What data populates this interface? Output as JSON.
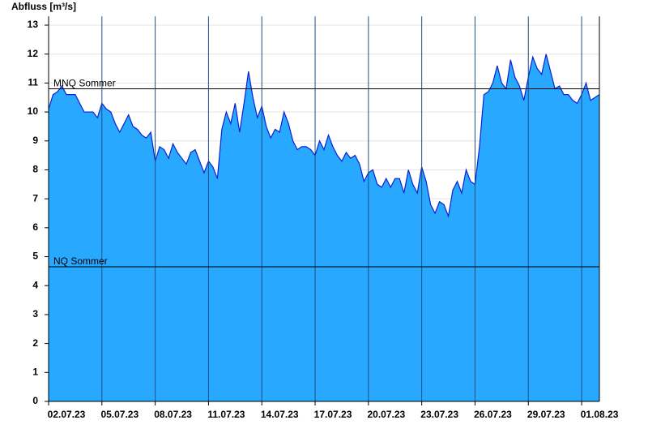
{
  "chart_data": {
    "type": "area",
    "title": "Abfluss [m³/s]",
    "categories": [
      "02.07.23",
      null,
      null,
      null,
      null,
      null,
      null,
      null,
      null,
      null,
      null,
      null,
      "05.07.23",
      null,
      null,
      null,
      null,
      null,
      null,
      null,
      null,
      null,
      null,
      null,
      "08.07.23",
      null,
      null,
      null,
      null,
      null,
      null,
      null,
      null,
      null,
      null,
      null,
      "11.07.23",
      null,
      null,
      null,
      null,
      null,
      null,
      null,
      null,
      null,
      null,
      null,
      "14.07.23",
      null,
      null,
      null,
      null,
      null,
      null,
      null,
      null,
      null,
      null,
      null,
      "17.07.23",
      null,
      null,
      null,
      null,
      null,
      null,
      null,
      null,
      null,
      null,
      null,
      "20.07.23",
      null,
      null,
      null,
      null,
      null,
      null,
      null,
      null,
      null,
      null,
      null,
      "23.07.23",
      null,
      null,
      null,
      null,
      null,
      null,
      null,
      null,
      null,
      null,
      null,
      "26.07.23",
      null,
      null,
      null,
      null,
      null,
      null,
      null,
      null,
      null,
      null,
      null,
      "29.07.23",
      null,
      null,
      null,
      null,
      null,
      null,
      null,
      null,
      null,
      null,
      null,
      "01.08.23",
      null,
      null,
      null,
      null
    ],
    "values": [
      10.1,
      10.6,
      10.7,
      10.9,
      10.6,
      10.6,
      10.6,
      10.3,
      10.0,
      10.0,
      10.0,
      9.8,
      10.3,
      10.1,
      10.0,
      9.6,
      9.3,
      9.6,
      9.9,
      9.5,
      9.4,
      9.2,
      9.1,
      9.3,
      8.3,
      8.8,
      8.7,
      8.4,
      8.9,
      8.6,
      8.4,
      8.2,
      8.6,
      8.7,
      8.3,
      7.9,
      8.3,
      8.1,
      7.7,
      9.4,
      10.0,
      9.6,
      10.3,
      9.3,
      10.3,
      11.4,
      10.5,
      9.8,
      10.2,
      9.5,
      9.1,
      9.4,
      9.3,
      10.0,
      9.6,
      9.0,
      8.7,
      8.8,
      8.8,
      8.7,
      8.5,
      9.0,
      8.7,
      9.2,
      8.8,
      8.5,
      8.3,
      8.6,
      8.4,
      8.5,
      8.2,
      7.6,
      7.9,
      8.0,
      7.5,
      7.4,
      7.7,
      7.4,
      7.7,
      7.7,
      7.2,
      8.0,
      7.5,
      7.2,
      8.1,
      7.6,
      6.8,
      6.5,
      6.9,
      6.8,
      6.4,
      7.3,
      7.6,
      7.2,
      8.0,
      7.6,
      7.5,
      8.8,
      10.6,
      10.7,
      11.0,
      11.6,
      11.0,
      10.8,
      11.8,
      11.2,
      10.9,
      10.4,
      11.2,
      11.9,
      11.5,
      11.3,
      12.0,
      11.4,
      10.8,
      10.9,
      10.6,
      10.6,
      10.4,
      10.3,
      10.6,
      11.0,
      10.4,
      10.5,
      10.6
    ],
    "color": "#29a8ff",
    "line_color": "#0a1fd6",
    "ylim": [
      0,
      13.3
    ],
    "yticks": [
      0,
      1,
      2,
      3,
      4,
      5,
      6,
      7,
      8,
      9,
      10,
      11,
      12,
      13
    ],
    "grid": true,
    "reference_lines": [
      {
        "label": "MNQ Sommer",
        "value": 10.8
      },
      {
        "label": "NQ Sommer",
        "value": 4.65
      }
    ]
  }
}
